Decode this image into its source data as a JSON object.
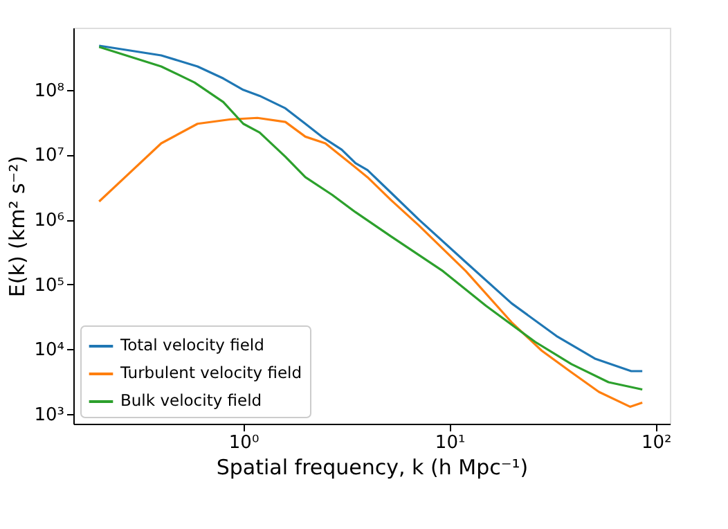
{
  "chart_data": {
    "type": "line",
    "xlabel": "Spatial frequency, k (h Mpc⁻¹)",
    "ylabel": "E(k) (km² s⁻²)",
    "log": "xy",
    "grid": false,
    "legend": "bottom left",
    "marker": "none",
    "line_style": "solid",
    "xlim": [
      0.15,
      117
    ],
    "ylim": [
      710,
      910000000.0
    ],
    "xticks": [
      {
        "value": 1,
        "label": "10⁰"
      },
      {
        "value": 10,
        "label": "10¹"
      },
      {
        "value": 100,
        "label": "10²"
      }
    ],
    "yticks": [
      {
        "value": 1000,
        "label": "10³"
      },
      {
        "value": 10000,
        "label": "10⁴"
      },
      {
        "value": 100000,
        "label": "10⁵"
      },
      {
        "value": 1000000,
        "label": "10⁶"
      },
      {
        "value": 10000000,
        "label": "10⁷"
      },
      {
        "value": 100000000,
        "label": "10⁸"
      }
    ],
    "series": [
      {
        "name": "Total velocity field",
        "color": "#1f77b4",
        "x": [
          0.2,
          0.4,
          0.6,
          0.8,
          1.0,
          1.2,
          1.6,
          2.0,
          2.4,
          3.0,
          3.5,
          4.0,
          5.2,
          7.1,
          12,
          20,
          33,
          51,
          76,
          86
        ],
        "values": [
          480000000.0,
          340000000.0,
          230000000.0,
          150000000.0,
          100000000.0,
          81000000.0,
          52000000.0,
          30000000.0,
          19000000.0,
          12000000.0,
          7400000.0,
          5800000.0,
          2600000.0,
          1000000.0,
          220000.0,
          51000.0,
          16000.0,
          7100.0,
          4600.0,
          4600.0
        ]
      },
      {
        "name": "Turbulent velocity field",
        "color": "#ff7f0e",
        "x": [
          0.2,
          0.4,
          0.6,
          0.86,
          1.17,
          1.6,
          2.0,
          2.5,
          3.3,
          4.0,
          5.2,
          7.1,
          12,
          20,
          28,
          39,
          53,
          75,
          86
        ],
        "values": [
          1900000.0,
          15000000.0,
          30000000.0,
          35000000.0,
          37000000.0,
          32000000.0,
          19000000.0,
          15000000.0,
          7400000.0,
          4500000.0,
          2000000.0,
          810000.0,
          160000.0,
          26000.0,
          9500.0,
          4400.0,
          2200.0,
          1300.0,
          1500.0
        ]
      },
      {
        "name": "Bulk velocity field",
        "color": "#2ca02c",
        "x": [
          0.2,
          0.4,
          0.58,
          0.8,
          1.0,
          1.2,
          1.6,
          2.0,
          2.7,
          3.5,
          5.2,
          9.3,
          15,
          26,
          39,
          59,
          86
        ],
        "values": [
          460000000.0,
          230000000.0,
          130000000.0,
          65000000.0,
          30000000.0,
          22000000.0,
          9300000.0,
          4500000.0,
          2400000.0,
          1300000.0,
          550000.0,
          160000.0,
          47000.0,
          13000.0,
          5900.0,
          3100.0,
          2400.0
        ]
      }
    ]
  }
}
